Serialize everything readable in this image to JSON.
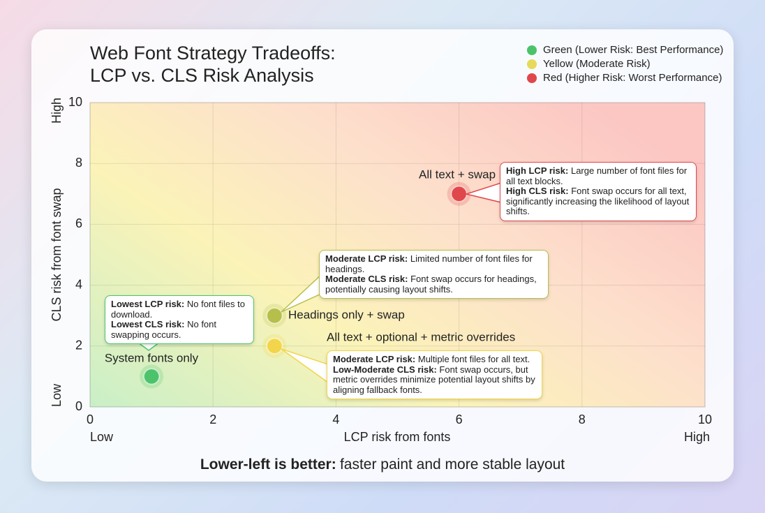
{
  "chart_data": {
    "type": "scatter",
    "title": [
      "Web Font Strategy Tradeoffs:",
      "LCP vs. CLS Risk Analysis"
    ],
    "legend": [
      {
        "label": "Green (Lower Risk: Best Performance)",
        "color": "#4cc36a"
      },
      {
        "label": "Yellow (Moderate Risk)",
        "color": "#e6da5a"
      },
      {
        "label": "Red (Higher Risk: Worst Performance)",
        "color": "#e0474c"
      }
    ],
    "x_label": "LCP risk from fonts",
    "x_low": "Low",
    "x_high": "High",
    "y_label": "CLS risk from font swap",
    "y_low": "Low",
    "y_high": "High",
    "xlim": [
      0,
      10
    ],
    "ylim": [
      0,
      10
    ],
    "xticks": [
      0,
      2,
      4,
      6,
      8,
      10
    ],
    "yticks": [
      0,
      2,
      4,
      6,
      8,
      10
    ],
    "grid": true,
    "points": [
      {
        "label": "System fonts only",
        "x": 1,
        "y": 1,
        "color": "#4cc36a",
        "callout": [
          {
            "bold": "Lowest LCP risk:",
            "text": "No font files to download."
          },
          {
            "bold": "Lowest CLS risk:",
            "text": "No font swapping occurs."
          }
        ]
      },
      {
        "label": "Headings only + swap",
        "x": 3,
        "y": 3,
        "color": "#b5bf4a",
        "callout": [
          {
            "bold": "Moderate LCP risk:",
            "text": "Limited number of font files for headings."
          },
          {
            "bold": "Moderate CLS risk:",
            "text": "Font swap occurs for headings, potentially causing layout shifts."
          }
        ]
      },
      {
        "label": "All text + optional + metric overrides",
        "x": 3,
        "y": 2,
        "color": "#f2d54a",
        "callout": [
          {
            "bold": "Moderate LCP risk:",
            "text": "Multiple font files for all text."
          },
          {
            "bold": "Low-Moderate CLS risk:",
            "text": "Font swap occurs, but metric overrides minimize potential layout shifts by aligning fallback fonts."
          }
        ]
      },
      {
        "label": "All text + swap",
        "x": 6,
        "y": 7,
        "color": "#e0474c",
        "callout": [
          {
            "bold": "High LCP risk:",
            "text": "Large number of font files for all text blocks."
          },
          {
            "bold": "High CLS risk:",
            "text": "Font swap occurs for all text, significantly increasing the likelihood of layout shifts."
          }
        ]
      }
    ],
    "footer": {
      "bold": "Lower-left is better:",
      "text": "faster paint and more stable layout"
    }
  }
}
